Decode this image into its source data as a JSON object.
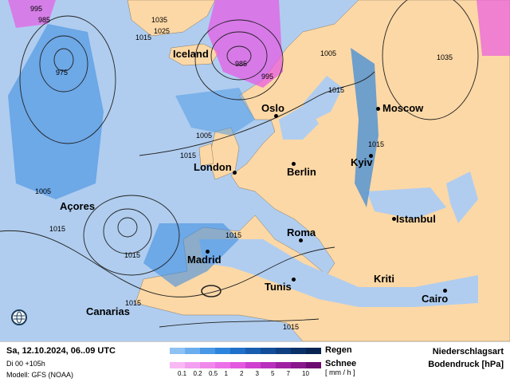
{
  "map": {
    "cities": [
      {
        "name": "Iceland",
        "dot": false
      },
      {
        "name": "Oslo",
        "dot": true
      },
      {
        "name": "Moscow",
        "dot": true
      },
      {
        "name": "London",
        "dot": true
      },
      {
        "name": "Berlin",
        "dot": true
      },
      {
        "name": "Kyiv",
        "dot": true
      },
      {
        "name": "Açores",
        "dot": false
      },
      {
        "name": "Istanbul",
        "dot": true
      },
      {
        "name": "Roma",
        "dot": true
      },
      {
        "name": "Madrid",
        "dot": true
      },
      {
        "name": "Tunis",
        "dot": true
      },
      {
        "name": "Kriti",
        "dot": false
      },
      {
        "name": "Cairo",
        "dot": true
      },
      {
        "name": "Canarias",
        "dot": false
      }
    ],
    "isobar_labels": [
      "995",
      "985",
      "975",
      "1035",
      "1025",
      "1015",
      "985",
      "995",
      "1005",
      "1015",
      "1035",
      "1005",
      "1015",
      "1015",
      "1005",
      "1015",
      "1015",
      "1015",
      "1015",
      "1015"
    ],
    "colors": {
      "sea": "#b0cdef",
      "land": "#fcd8a6",
      "rain": "#3f8ee0",
      "snow": "#e860e8"
    },
    "icon": "globe-icon"
  },
  "footer": {
    "date": "Sa, 12.10.2024, 06..09 UTC",
    "run": "Di 00 +105h",
    "model": "Modell: GFS (NOAA)",
    "rain_label": "Regen",
    "snow_label": "Schnee",
    "ticks": [
      "0.1",
      "0.2",
      "0.5",
      "1",
      "2",
      "3",
      "5",
      "7",
      "10"
    ],
    "unit": "[ mm / h ]",
    "title1": "Niederschlagsart",
    "title2": "Bodendruck [hPa]",
    "rain_colors": [
      "#8ec2f4",
      "#6aaef0",
      "#4898e6",
      "#2c84dc",
      "#1f70c8",
      "#185eb0",
      "#124e98",
      "#0e3f80",
      "#0a3068",
      "#072452"
    ],
    "snow_colors": [
      "#f8b8f4",
      "#f4a0f0",
      "#f088ec",
      "#ec70e8",
      "#e458e0",
      "#d040d0",
      "#b830bc",
      "#a020a4",
      "#88188c",
      "#6c0c70"
    ]
  }
}
